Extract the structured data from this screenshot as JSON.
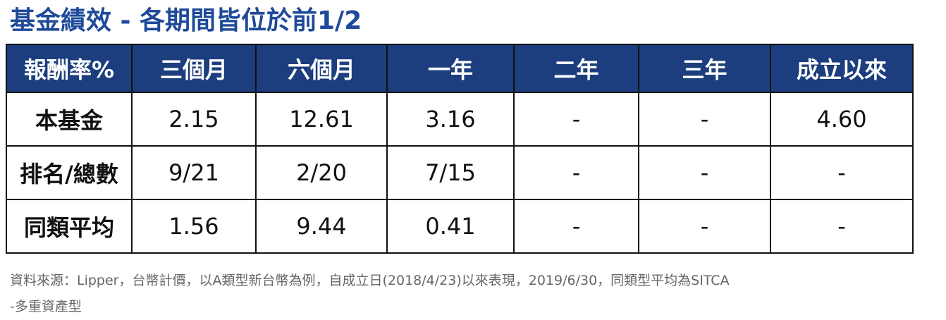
{
  "title": "基金績效 - 各期間皆位於前1/2",
  "table": {
    "header": [
      "報酬率%",
      "三個月",
      "六個月",
      "一年",
      "二年",
      "三年",
      "成立以來"
    ],
    "rows": [
      [
        "本基金",
        "2.15",
        "12.61",
        "3.16",
        "-",
        "-",
        "4.60"
      ],
      [
        "排名/總數",
        "9/21",
        "2/20",
        "7/15",
        "-",
        "-",
        "-"
      ],
      [
        "同類平均",
        "1.56",
        "9.44",
        "0.41",
        "-",
        "-",
        "-"
      ]
    ]
  },
  "footnote": [
    "資料來源：Lipper，台幣計價，以A類型新台幣為例，自成立日(2018/4/23)以來表現，2019/6/30，同類型平均為SITCA",
    "-多重資產型"
  ]
}
